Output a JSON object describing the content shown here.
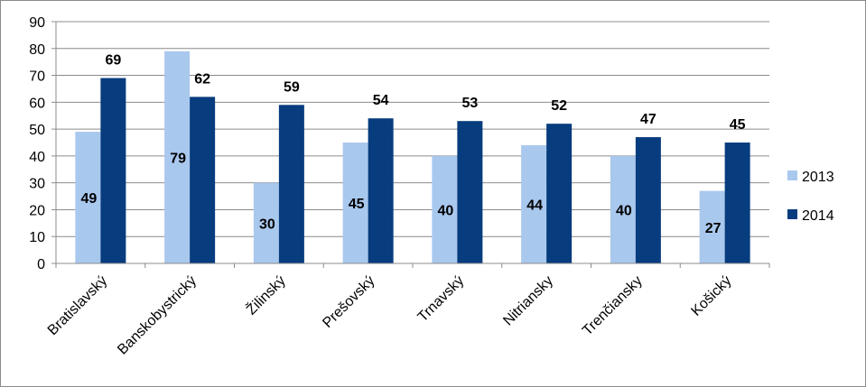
{
  "chart_data": {
    "type": "bar",
    "categories": [
      "Bratislavský",
      "Banskobystrický",
      "Žilinský",
      "Prešovský",
      "Trnavský",
      "Nitriansky",
      "Trenčiansky",
      "Košický"
    ],
    "series": [
      {
        "name": "2013",
        "color": "#a9c8ee",
        "values": [
          49,
          79,
          30,
          45,
          40,
          44,
          40,
          27
        ]
      },
      {
        "name": "2014",
        "color": "#073c7e",
        "values": [
          69,
          62,
          59,
          54,
          53,
          52,
          47,
          45
        ]
      }
    ],
    "ylim": [
      0,
      90
    ],
    "yticks": [
      0,
      10,
      20,
      30,
      40,
      50,
      60,
      70,
      80,
      90
    ],
    "grid": true,
    "legend_position": "right",
    "data_labels": true,
    "title": "",
    "xlabel": "",
    "ylabel": ""
  }
}
